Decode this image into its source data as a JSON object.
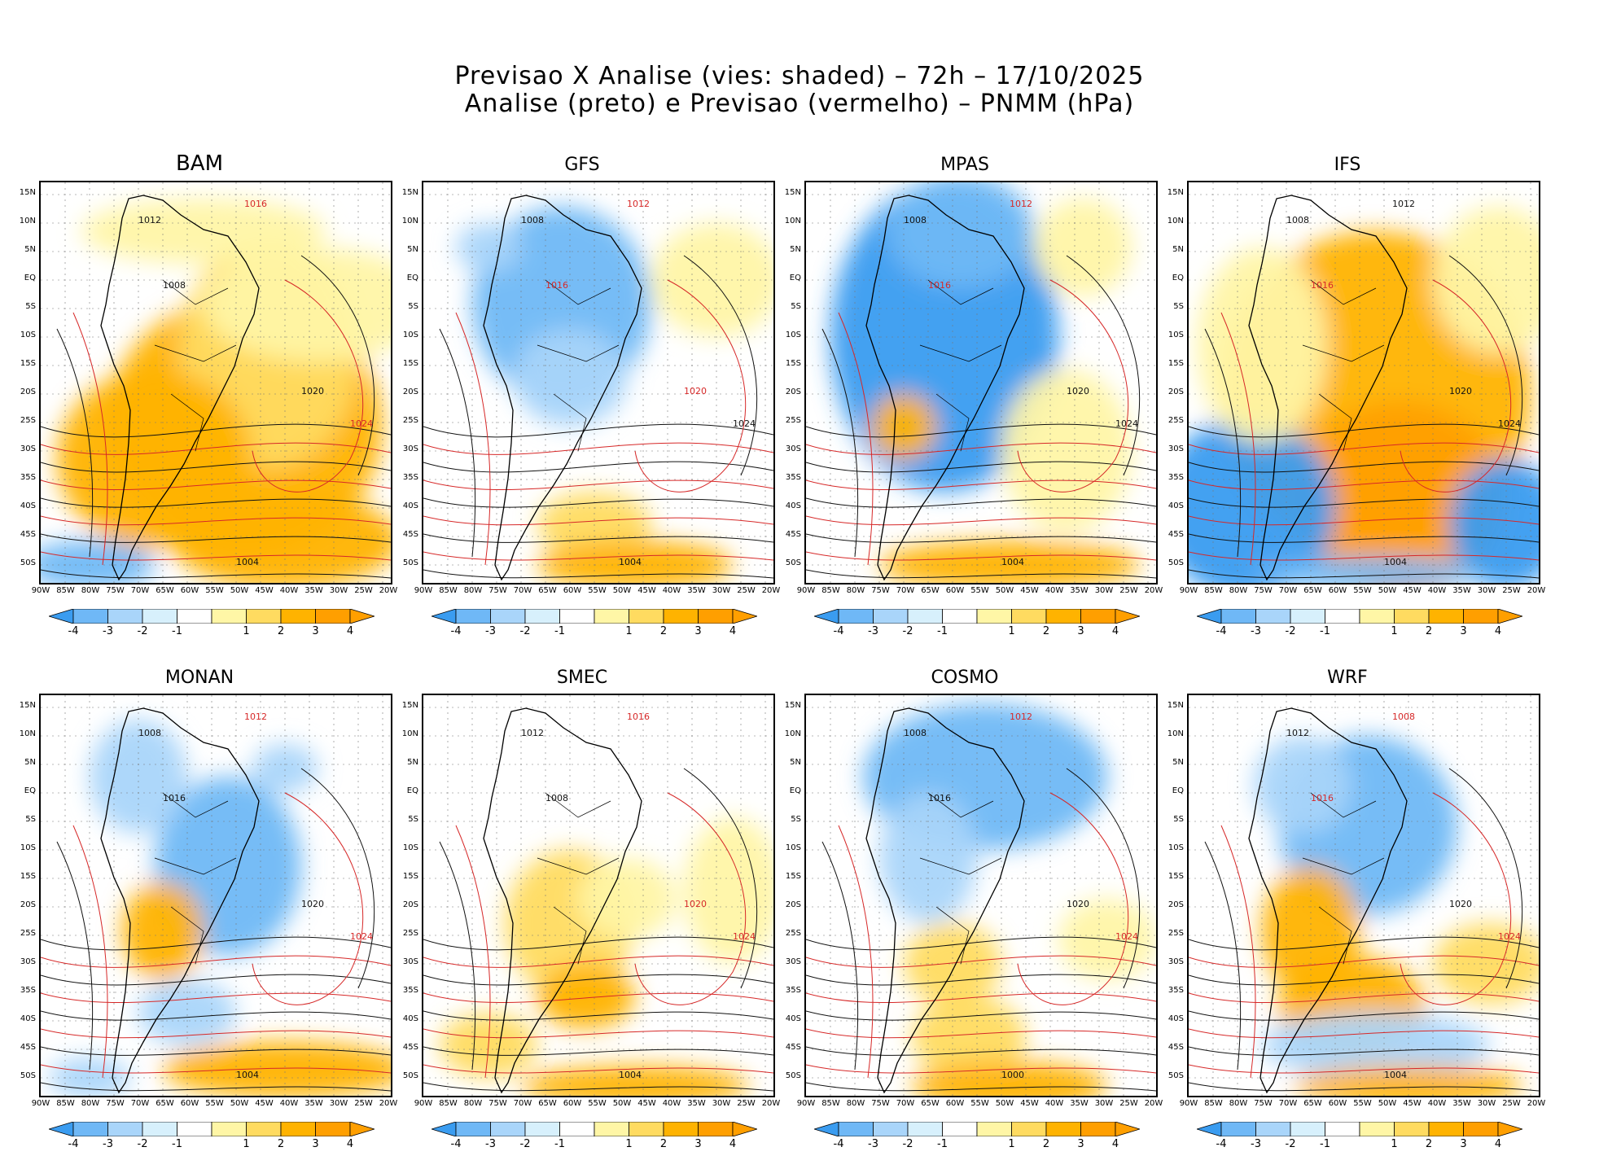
{
  "title": {
    "line1": "Previsao X Analise (vies: shaded) – 72h – 17/10/2025",
    "line2": "Analise (preto) e Previsao (vermelho) – PNMM (hPa)"
  },
  "axes": {
    "lat_labels": [
      "15N",
      "10N",
      "5N",
      "EQ",
      "5S",
      "10S",
      "15S",
      "20S",
      "25S",
      "30S",
      "35S",
      "40S",
      "45S",
      "50S"
    ],
    "lon_labels": [
      "90W",
      "85W",
      "80W",
      "75W",
      "70W",
      "65W",
      "60W",
      "55W",
      "50W",
      "45W",
      "40W",
      "35W",
      "30W",
      "25W",
      "20W"
    ]
  },
  "colorbar": {
    "labels": [
      "-4",
      "-3",
      "-2",
      "-1",
      "1",
      "2",
      "3",
      "4"
    ],
    "colors": [
      "#3a9cf0",
      "#6fb8f6",
      "#a9d5fa",
      "#d7f0fc",
      "#ffffff",
      "#fff6a6",
      "#ffdb60",
      "#ffb300",
      "#ff9f00"
    ]
  },
  "panels": [
    {
      "name": "BAM",
      "bias": "warm",
      "labels": [
        {
          "t": "1016",
          "c": "red"
        },
        {
          "t": "1012",
          "c": "black"
        },
        {
          "t": "1008",
          "c": "black"
        },
        {
          "t": "1020",
          "c": "black"
        },
        {
          "t": "1024",
          "c": "red"
        },
        {
          "t": "1004",
          "c": "black"
        }
      ]
    },
    {
      "name": "GFS",
      "bias": "cool",
      "labels": [
        {
          "t": "1012",
          "c": "red"
        },
        {
          "t": "1008",
          "c": "black"
        },
        {
          "t": "1016",
          "c": "red"
        },
        {
          "t": "1020",
          "c": "red"
        },
        {
          "t": "1024",
          "c": "black"
        },
        {
          "t": "1004",
          "c": "black"
        }
      ]
    },
    {
      "name": "MPAS",
      "bias": "coldcore",
      "labels": [
        {
          "t": "1012",
          "c": "red"
        },
        {
          "t": "1008",
          "c": "black"
        },
        {
          "t": "1016",
          "c": "red"
        },
        {
          "t": "1020",
          "c": "black"
        },
        {
          "t": "1024",
          "c": "black"
        },
        {
          "t": "1004",
          "c": "black"
        }
      ]
    },
    {
      "name": "IFS",
      "bias": "hot",
      "labels": [
        {
          "t": "1012",
          "c": "black"
        },
        {
          "t": "1008",
          "c": "black"
        },
        {
          "t": "1016",
          "c": "red"
        },
        {
          "t": "1020",
          "c": "black"
        },
        {
          "t": "1024",
          "c": "black"
        },
        {
          "t": "1004",
          "c": "black"
        }
      ]
    },
    {
      "name": "MONAN",
      "bias": "mixed",
      "labels": [
        {
          "t": "1012",
          "c": "red"
        },
        {
          "t": "1008",
          "c": "black"
        },
        {
          "t": "1016",
          "c": "black"
        },
        {
          "t": "1020",
          "c": "black"
        },
        {
          "t": "1024",
          "c": "red"
        },
        {
          "t": "1004",
          "c": "black"
        }
      ]
    },
    {
      "name": "SMEC",
      "bias": "mild",
      "labels": [
        {
          "t": "1016",
          "c": "red"
        },
        {
          "t": "1012",
          "c": "black"
        },
        {
          "t": "1008",
          "c": "black"
        },
        {
          "t": "1020",
          "c": "red"
        },
        {
          "t": "1024",
          "c": "red"
        },
        {
          "t": "1004",
          "c": "black"
        }
      ]
    },
    {
      "name": "COSMO",
      "bias": "cool2",
      "labels": [
        {
          "t": "1012",
          "c": "red"
        },
        {
          "t": "1008",
          "c": "black"
        },
        {
          "t": "1016",
          "c": "black"
        },
        {
          "t": "1020",
          "c": "black"
        },
        {
          "t": "1024",
          "c": "red"
        },
        {
          "t": "1000",
          "c": "black"
        }
      ]
    },
    {
      "name": "WRF",
      "bias": "mixed2",
      "labels": [
        {
          "t": "1008",
          "c": "red"
        },
        {
          "t": "1012",
          "c": "black"
        },
        {
          "t": "1016",
          "c": "red"
        },
        {
          "t": "1020",
          "c": "black"
        },
        {
          "t": "1024",
          "c": "red"
        },
        {
          "t": "1004",
          "c": "black"
        }
      ]
    }
  ]
}
